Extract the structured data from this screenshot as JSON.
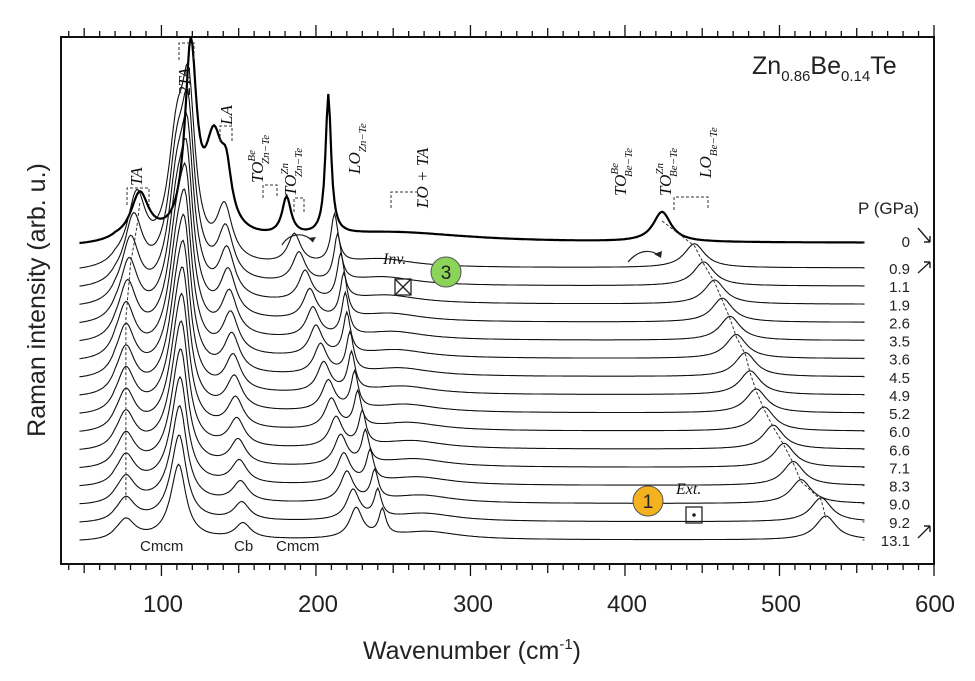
{
  "chart_data": {
    "type": "line",
    "title": "Zn0.86Be0.14Te",
    "title_parts": {
      "base1": "Zn",
      "sub1": "0.86",
      "base2": "Be",
      "sub2": "0.14",
      "base3": "Te"
    },
    "xlabel": "Wavenumber (cm-1)",
    "xlabel_parts": {
      "main": "Wavenumber (cm",
      "sup": "-1",
      "end": ")"
    },
    "ylabel": "Raman intensity (arb. u.)",
    "xlim": [
      35,
      600
    ],
    "xticks": [
      "100",
      "200",
      "300",
      "400",
      "500",
      "600"
    ],
    "pressure_header": "P (GPa)",
    "pressures": [
      "0",
      "0.9",
      "1.1",
      "1.9",
      "2.6",
      "3.5",
      "3.6",
      "4.5",
      "4.9",
      "5.2",
      "6.0",
      "6.6",
      "7.1",
      "8.3",
      "9.0",
      "9.2",
      "13.1"
    ],
    "series_peak_positions": {
      "TA_peak": [
        86,
        84,
        82,
        80,
        79,
        78,
        77,
        77,
        77,
        77,
        77,
        77,
        77,
        77,
        77,
        77,
        77
      ],
      "TO_ZnTe_peak": [
        181,
        186,
        189,
        193,
        196,
        198,
        200,
        203,
        205,
        208,
        210,
        213,
        216,
        218,
        220,
        224,
        226
      ],
      "LO_ZnTe_peak": [
        208,
        212,
        214,
        216,
        218,
        219,
        220,
        222,
        223,
        225,
        227,
        230,
        232,
        235,
        238,
        240,
        243
      ],
      "Be_Te_peak": [
        424,
        445,
        451,
        458,
        463,
        468,
        472,
        478,
        481,
        485,
        490,
        496,
        503,
        509,
        514,
        527,
        530
      ]
    },
    "mode_labels": [
      {
        "text": "TA"
      },
      {
        "text": "2TA"
      },
      {
        "text": "LA"
      },
      {
        "text": "TO",
        "sup": "Be",
        "sub": "Zn−Te"
      },
      {
        "text": "TO",
        "sup": "Zn",
        "sub": "Zn−Te"
      },
      {
        "text": "LO",
        "sub": "Zn−Te"
      },
      {
        "text": "LO + TA"
      },
      {
        "text": "TO",
        "sup": "Be",
        "sub": "Be−Te"
      },
      {
        "text": "TO",
        "sup": "Zn",
        "sub": "Be−Te"
      },
      {
        "text": "LO",
        "sub": "Be−Te"
      }
    ],
    "phase_labels": [
      "Cmcm",
      "Cb",
      "Cmcm"
    ],
    "annotations": {
      "inv_label": "Inv.",
      "ext_label": "Ext.",
      "circle3": "3",
      "circle1": "1",
      "circle3_color": "#8bd45a",
      "circle1_color": "#f4b21f"
    },
    "grid": false
  }
}
